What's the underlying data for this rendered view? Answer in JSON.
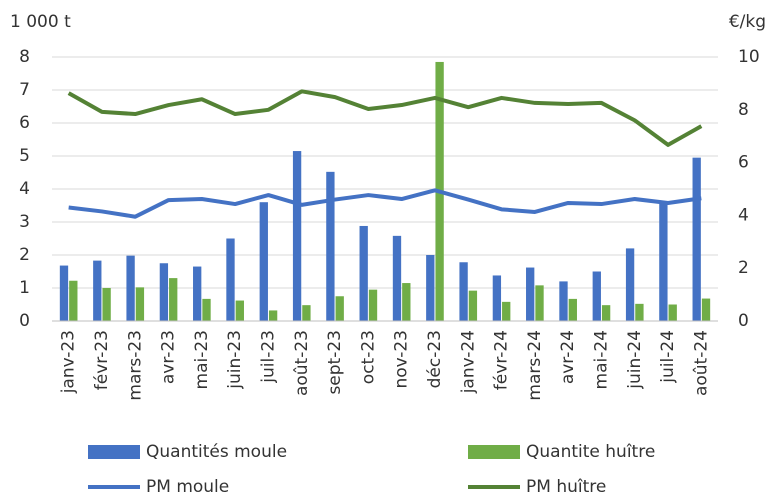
{
  "chart_data": {
    "type": "bar",
    "y_label": "1 000 t",
    "y2_label": "€/kg",
    "categories": [
      "janv-23",
      "févr-23",
      "mars-23",
      "avr-23",
      "mai-23",
      "juin-23",
      "juil-23",
      "août-23",
      "sept-23",
      "oct-23",
      "nov-23",
      "déc-23",
      "janv-24",
      "févr-24",
      "mars-24",
      "avr-24",
      "mai-24",
      "juin-24",
      "juil-24",
      "août-24"
    ],
    "series": [
      {
        "name": "Quantités moule",
        "type": "bar",
        "color": "#4472c4",
        "values": [
          1.68,
          1.83,
          1.98,
          1.75,
          1.65,
          2.5,
          3.6,
          5.15,
          4.52,
          2.88,
          2.58,
          2.0,
          1.78,
          1.38,
          1.62,
          1.2,
          1.5,
          2.2,
          3.55,
          4.95
        ]
      },
      {
        "name": "Quantite huître",
        "type": "bar",
        "color": "#70ad47",
        "values": [
          1.22,
          1.0,
          1.02,
          1.3,
          0.67,
          0.62,
          0.32,
          0.48,
          0.75,
          0.95,
          1.15,
          7.85,
          0.92,
          0.58,
          1.08,
          0.67,
          0.48,
          0.52,
          0.5,
          0.68
        ]
      },
      {
        "name": "PM moule",
        "type": "line",
        "axis": "y2",
        "color": "#4472c4",
        "values": [
          4.3,
          4.15,
          3.95,
          4.58,
          4.62,
          4.43,
          4.77,
          4.4,
          4.6,
          4.77,
          4.62,
          4.95,
          4.6,
          4.23,
          4.13,
          4.47,
          4.43,
          4.62,
          4.47,
          4.65
        ]
      },
      {
        "name": "PM huître",
        "type": "line",
        "axis": "y2",
        "color": "#548235",
        "values": [
          8.63,
          7.92,
          7.84,
          8.18,
          8.4,
          7.84,
          8.0,
          8.7,
          8.48,
          8.03,
          8.18,
          8.45,
          8.1,
          8.45,
          8.26,
          8.22,
          8.26,
          7.6,
          6.67,
          7.38
        ]
      }
    ],
    "ylim": [
      0,
      8
    ],
    "yticks": [
      0,
      1,
      2,
      3,
      4,
      5,
      6,
      7,
      8
    ],
    "y2lim": [
      0,
      10
    ],
    "y2ticks": [
      0,
      2,
      4,
      6,
      8,
      10
    ],
    "grid": true
  }
}
